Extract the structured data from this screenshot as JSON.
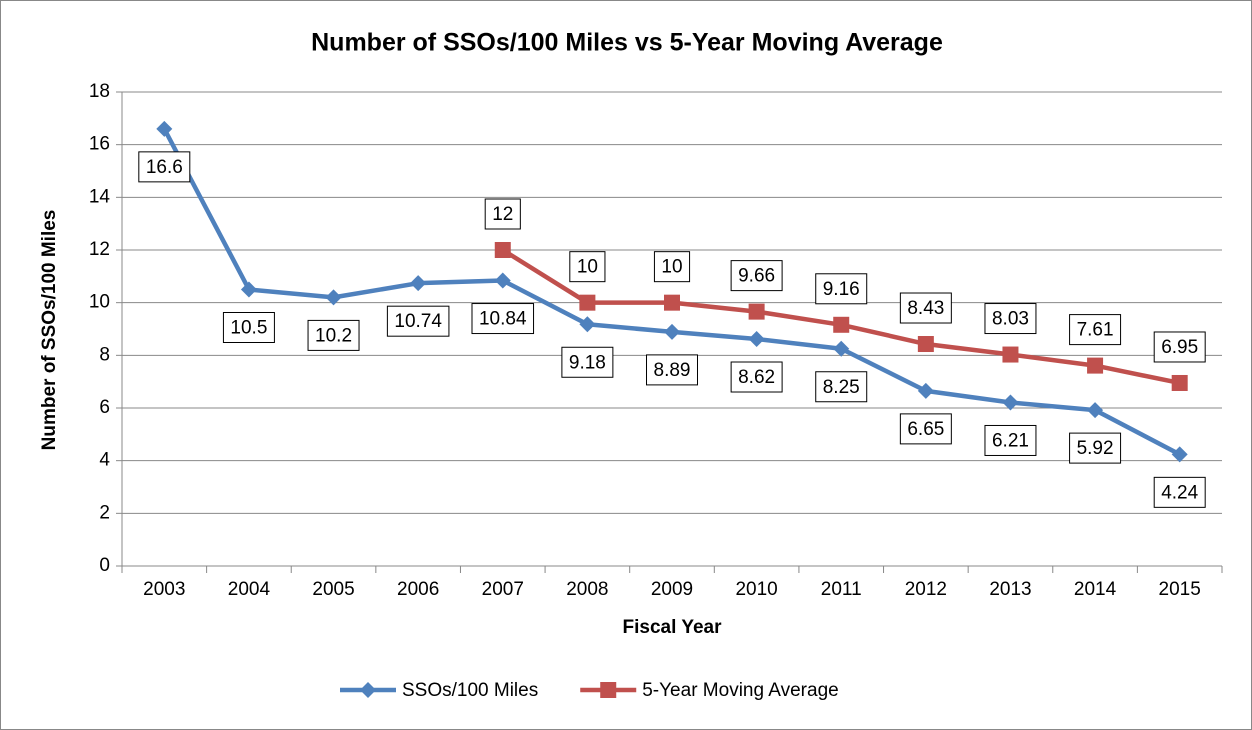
{
  "chart_data": {
    "type": "line",
    "title": "Number of SSOs/100 Miles vs 5-Year Moving Average",
    "x_label": "Fiscal Year",
    "y_label": "Number of SSOs/100 Miles",
    "categories": [
      "2003",
      "2004",
      "2005",
      "2006",
      "2007",
      "2008",
      "2009",
      "2010",
      "2011",
      "2012",
      "2013",
      "2014",
      "2015"
    ],
    "series": [
      {
        "name": "SSOs/100 Miles",
        "color": "#4f81bd",
        "marker": "diamond",
        "label_position": "below",
        "values": [
          16.6,
          10.5,
          10.2,
          10.74,
          10.84,
          9.18,
          8.89,
          8.62,
          8.25,
          6.65,
          6.21,
          5.92,
          4.24
        ]
      },
      {
        "name": "5-Year Moving Average",
        "color": "#c0504d",
        "marker": "square",
        "label_position": "above",
        "values": [
          null,
          null,
          null,
          null,
          12,
          10,
          10,
          9.66,
          9.16,
          8.43,
          8.03,
          7.61,
          6.95
        ]
      }
    ],
    "ylim": [
      0,
      18
    ],
    "yticks": [
      0,
      2,
      4,
      6,
      8,
      10,
      12,
      14,
      16,
      18
    ],
    "grid": true,
    "legend": "bottom"
  }
}
